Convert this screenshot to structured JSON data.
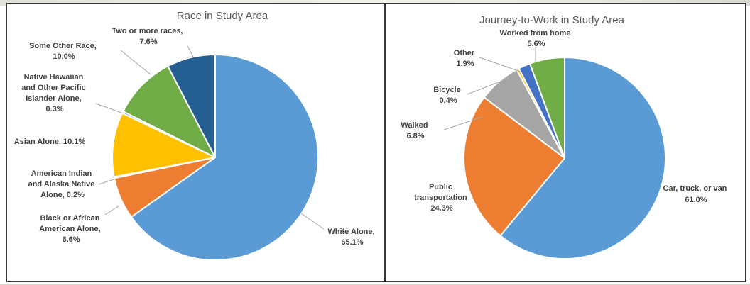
{
  "chart_data": [
    {
      "type": "pie",
      "title": "Race in Study Area",
      "slices": [
        {
          "label": "White Alone, 65.1%",
          "name": "White Alone",
          "value": 65.1,
          "color": "#5b9bd5"
        },
        {
          "label": "Black or African American Alone, 6.6%",
          "name": "Black or African American Alone",
          "value": 6.6,
          "color": "#ed7d31"
        },
        {
          "label": "American Indian and Alaska Native Alone, 0.2%",
          "name": "American Indian and Alaska Native Alone",
          "value": 0.2,
          "color": "#a5a5a5"
        },
        {
          "label": "Asian Alone, 10.1%",
          "name": "Asian Alone",
          "value": 10.1,
          "color": "#ffc000"
        },
        {
          "label": "Native Hawaiian and Other Pacific Islander Alone, 0.3%",
          "name": "Native Hawaiian and Other Pacific Islander Alone",
          "value": 0.3,
          "color": "#4472c4"
        },
        {
          "label": "Some Other Race, 10.0%",
          "name": "Some Other Race",
          "value": 10.0,
          "color": "#70ad47"
        },
        {
          "label": "Two or more races, 7.6%",
          "name": "Two or more races",
          "value": 7.6,
          "color": "#255e91"
        }
      ]
    },
    {
      "type": "pie",
      "title": "Journey-to-Work in Study Area",
      "slices": [
        {
          "label": "Car, truck, or van 61.0%",
          "name": "Car, truck, or van",
          "value": 61.0,
          "color": "#5b9bd5"
        },
        {
          "label": "Public transportation 24.3%",
          "name": "Public transportation",
          "value": 24.3,
          "color": "#ed7d31"
        },
        {
          "label": "Walked 6.8%",
          "name": "Walked",
          "value": 6.8,
          "color": "#a5a5a5"
        },
        {
          "label": "Bicycle 0.4%",
          "name": "Bicycle",
          "value": 0.4,
          "color": "#ffc000"
        },
        {
          "label": "Other 1.9%",
          "name": "Other",
          "value": 1.9,
          "color": "#4472c4"
        },
        {
          "label": "Worked from home 5.6%",
          "name": "Worked from home",
          "value": 5.6,
          "color": "#70ad47"
        }
      ]
    }
  ],
  "labels": {
    "race": {
      "white": [
        "White Alone,",
        "65.1%"
      ],
      "black": [
        "Black or African",
        "American Alone,",
        "6.6%"
      ],
      "amind": [
        "American Indian",
        "and Alaska Native",
        "Alone, 0.2%"
      ],
      "asian": [
        "Asian Alone, 10.1%"
      ],
      "nhpi": [
        "Native Hawaiian",
        "and Other Pacific",
        "Islander Alone,",
        "0.3%"
      ],
      "other": [
        "Some Other Race,",
        "10.0%"
      ],
      "two": [
        "Two or more races,",
        "7.6%"
      ]
    },
    "work": {
      "car": [
        "Car, truck, or van",
        "61.0%"
      ],
      "public": [
        "Public",
        "transportation",
        "24.3%"
      ],
      "walked": [
        "Walked",
        "6.8%"
      ],
      "bicycle": [
        "Bicycle",
        "0.4%"
      ],
      "other": [
        "Other",
        "1.9%"
      ],
      "home": [
        "Worked from home",
        "5.6%"
      ]
    }
  }
}
